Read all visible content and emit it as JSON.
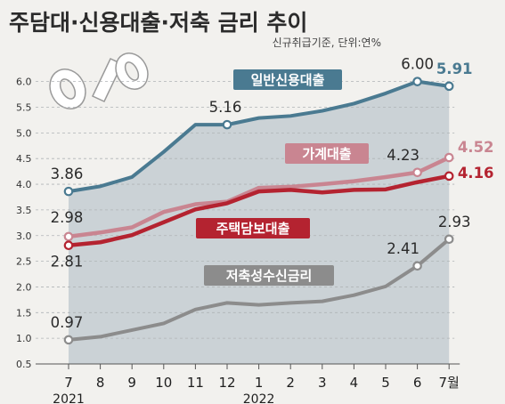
{
  "title": "주담대·신용대출·저축 금리 추이",
  "subtitle": "신규취급기준, 단위:연%",
  "colors": {
    "background": "#f2f1ee",
    "area": "#c7ced3",
    "credit": "#4a7a91",
    "household": "#c98591",
    "mortgage": "#b42330",
    "savings": "#8c8c8c"
  },
  "chart_data": {
    "type": "line",
    "categories": [
      "7",
      "8",
      "9",
      "10",
      "11",
      "12",
      "1",
      "2",
      "3",
      "4",
      "5",
      "6",
      "7월"
    ],
    "year_labels": [
      {
        "text": "2021",
        "category_index": 0
      },
      {
        "text": "2022",
        "category_index": 6
      }
    ],
    "y_ticks": [
      "0.5",
      "1.0",
      "1.5",
      "2.0",
      "2.5",
      "3.0",
      "3.5",
      "4.0",
      "4.5",
      "5.0",
      "5.5",
      "6.0"
    ],
    "ylim": [
      0.5,
      6.1
    ],
    "grid": true,
    "series": [
      {
        "name": "일반신용대출",
        "key": "credit",
        "values": [
          3.86,
          3.96,
          4.14,
          4.63,
          5.16,
          5.16,
          5.29,
          5.33,
          5.43,
          5.57,
          5.77,
          6.0,
          5.91
        ],
        "labels": [
          {
            "index": 0,
            "text": "3.86"
          },
          {
            "index": 5,
            "text": "5.16"
          },
          {
            "index": 11,
            "text": "6.00"
          },
          {
            "index": 12,
            "text": "5.91"
          }
        ]
      },
      {
        "name": "가계대출",
        "key": "household",
        "values": [
          2.98,
          3.06,
          3.16,
          3.46,
          3.61,
          3.66,
          3.93,
          3.95,
          4.0,
          4.06,
          4.14,
          4.23,
          4.52
        ],
        "labels": [
          {
            "index": 0,
            "text": "2.98"
          },
          {
            "index": 11,
            "text": "4.23"
          },
          {
            "index": 12,
            "text": "4.52"
          }
        ]
      },
      {
        "name": "주택담보대출",
        "key": "mortgage",
        "values": [
          2.81,
          2.87,
          3.01,
          3.26,
          3.51,
          3.63,
          3.86,
          3.89,
          3.84,
          3.89,
          3.9,
          4.04,
          4.16
        ],
        "labels": [
          {
            "index": 0,
            "text": "2.81"
          },
          {
            "index": 12,
            "text": "4.16"
          }
        ]
      },
      {
        "name": "저축성수신금리",
        "key": "savings",
        "values": [
          0.97,
          1.03,
          1.16,
          1.29,
          1.56,
          1.69,
          1.65,
          1.69,
          1.72,
          1.84,
          2.01,
          2.41,
          2.93
        ],
        "labels": [
          {
            "index": 0,
            "text": "0.97"
          },
          {
            "index": 11,
            "text": "2.41"
          },
          {
            "index": 12,
            "text": "2.93"
          }
        ]
      }
    ]
  }
}
